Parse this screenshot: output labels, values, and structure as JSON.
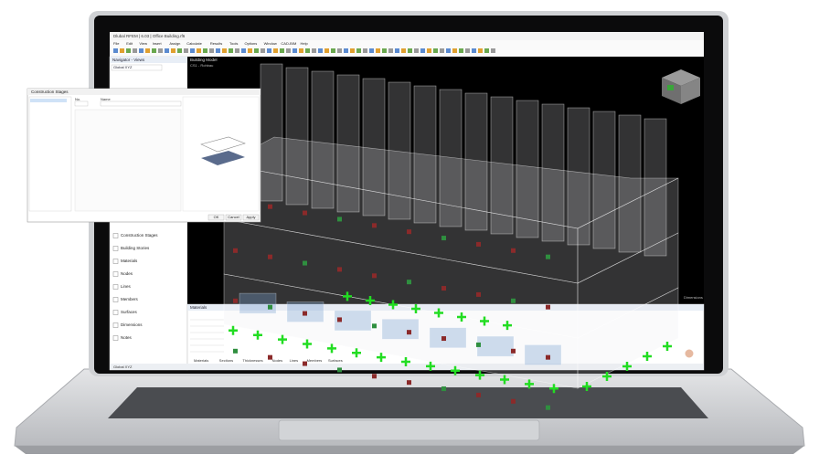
{
  "window_title": "Dlubal RFEM | 6.03 | Office Building.rf6",
  "menu": [
    "File",
    "Edit",
    "View",
    "Insert",
    "Assign",
    "Calculate",
    "Results",
    "Tools",
    "Options",
    "Window",
    "CAD-BIM",
    "Help"
  ],
  "navigator": {
    "title": "Navigator - Views",
    "view": "Global XYZ",
    "items": [
      "Construction Stages",
      "Building Stories",
      "Materials",
      "Nodes",
      "Lines",
      "Members",
      "Surfaces",
      "Dimensions",
      "Notes"
    ]
  },
  "viewport": {
    "title": "Building Model",
    "stage": "CS1 - Rohbau",
    "dimensions": "Dimensions"
  },
  "dialog": {
    "title": "Construction Stages",
    "fields": [
      "No.",
      "Name"
    ],
    "buttons": [
      "OK",
      "Cancel",
      "Apply"
    ]
  },
  "table": {
    "title": "Materials",
    "tabs": [
      "Materials",
      "Sections",
      "Thicknesses",
      "Nodes",
      "Lines",
      "Members",
      "Surfaces"
    ]
  },
  "status": "Global XYZ"
}
